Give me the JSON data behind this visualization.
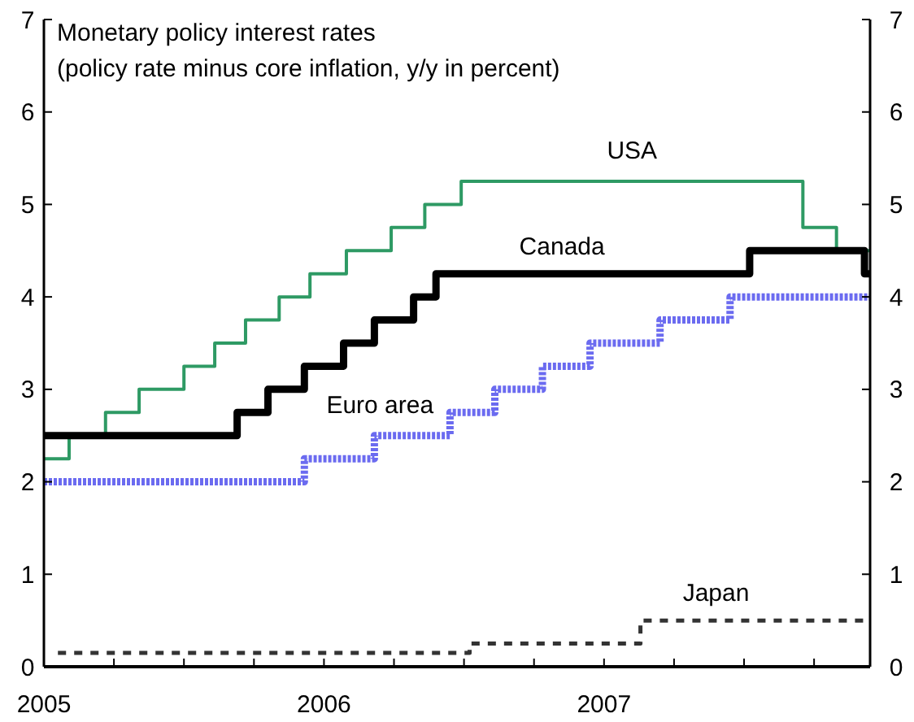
{
  "chart_data": {
    "type": "step",
    "title": "Monetary policy interest rates",
    "subtitle": "(policy rate minus core inflation, y/y in percent)",
    "xlim": [
      2005,
      2007.95
    ],
    "xticks": [
      2005,
      {
        "value": 2005.25,
        "label": null
      },
      {
        "value": 2005.5,
        "label": null
      },
      {
        "value": 2005.75,
        "label": null
      },
      2006,
      {
        "value": 2006.25,
        "label": null
      },
      {
        "value": 2006.5,
        "label": null
      },
      {
        "value": 2006.75,
        "label": null
      },
      2007,
      {
        "value": 2007.25,
        "label": null
      },
      {
        "value": 2007.5,
        "label": null
      },
      {
        "value": 2007.75,
        "label": null
      }
    ],
    "ylim": [
      0,
      7
    ],
    "yticks": [
      0,
      1,
      2,
      3,
      4,
      5,
      6,
      7
    ],
    "y2lim": [
      0,
      7
    ],
    "y2ticks": [
      0,
      1,
      2,
      3,
      4,
      5,
      6,
      7
    ],
    "grid": false,
    "series": [
      {
        "name": "USA",
        "color": "#2e9a64",
        "line_style": "solid",
        "x": [
          2005,
          2005.09,
          2005.22,
          2005.34,
          2005.5,
          2005.61,
          2005.72,
          2005.84,
          2005.95,
          2006.08,
          2006.24,
          2006.36,
          2006.49,
          2007.71,
          2007.83,
          2007.94,
          2007.95
        ],
        "values": [
          2.25,
          2.5,
          2.75,
          3,
          3.25,
          3.5,
          3.75,
          4,
          4.25,
          4.5,
          4.75,
          5,
          5.25,
          4.75,
          4.5,
          4.5,
          4.5
        ]
      },
      {
        "name": "Canada",
        "color": "#000000",
        "line_style": "solid",
        "x": [
          2005,
          2005.69,
          2005.8,
          2005.93,
          2006.07,
          2006.18,
          2006.32,
          2006.4,
          2007.52,
          2007.93,
          2007.95
        ],
        "values": [
          2.5,
          2.75,
          3,
          3.25,
          3.5,
          3.75,
          4,
          4.25,
          4.5,
          4.25,
          4.25
        ]
      },
      {
        "name": "Euro area",
        "color": "#6b6bf0",
        "line_style": "dotted",
        "x": [
          2005,
          2005.93,
          2006.18,
          2006.45,
          2006.61,
          2006.78,
          2006.95,
          2007.2,
          2007.45,
          2007.95
        ],
        "values": [
          2,
          2.25,
          2.5,
          2.75,
          3,
          3.25,
          3.5,
          3.75,
          4,
          4
        ]
      },
      {
        "name": "Japan",
        "color": "#333333",
        "line_style": "dashed",
        "x": [
          2005.05,
          2006.52,
          2007.13,
          2007.95
        ],
        "values": [
          0.15,
          0.25,
          0.5,
          0.5
        ]
      }
    ]
  }
}
